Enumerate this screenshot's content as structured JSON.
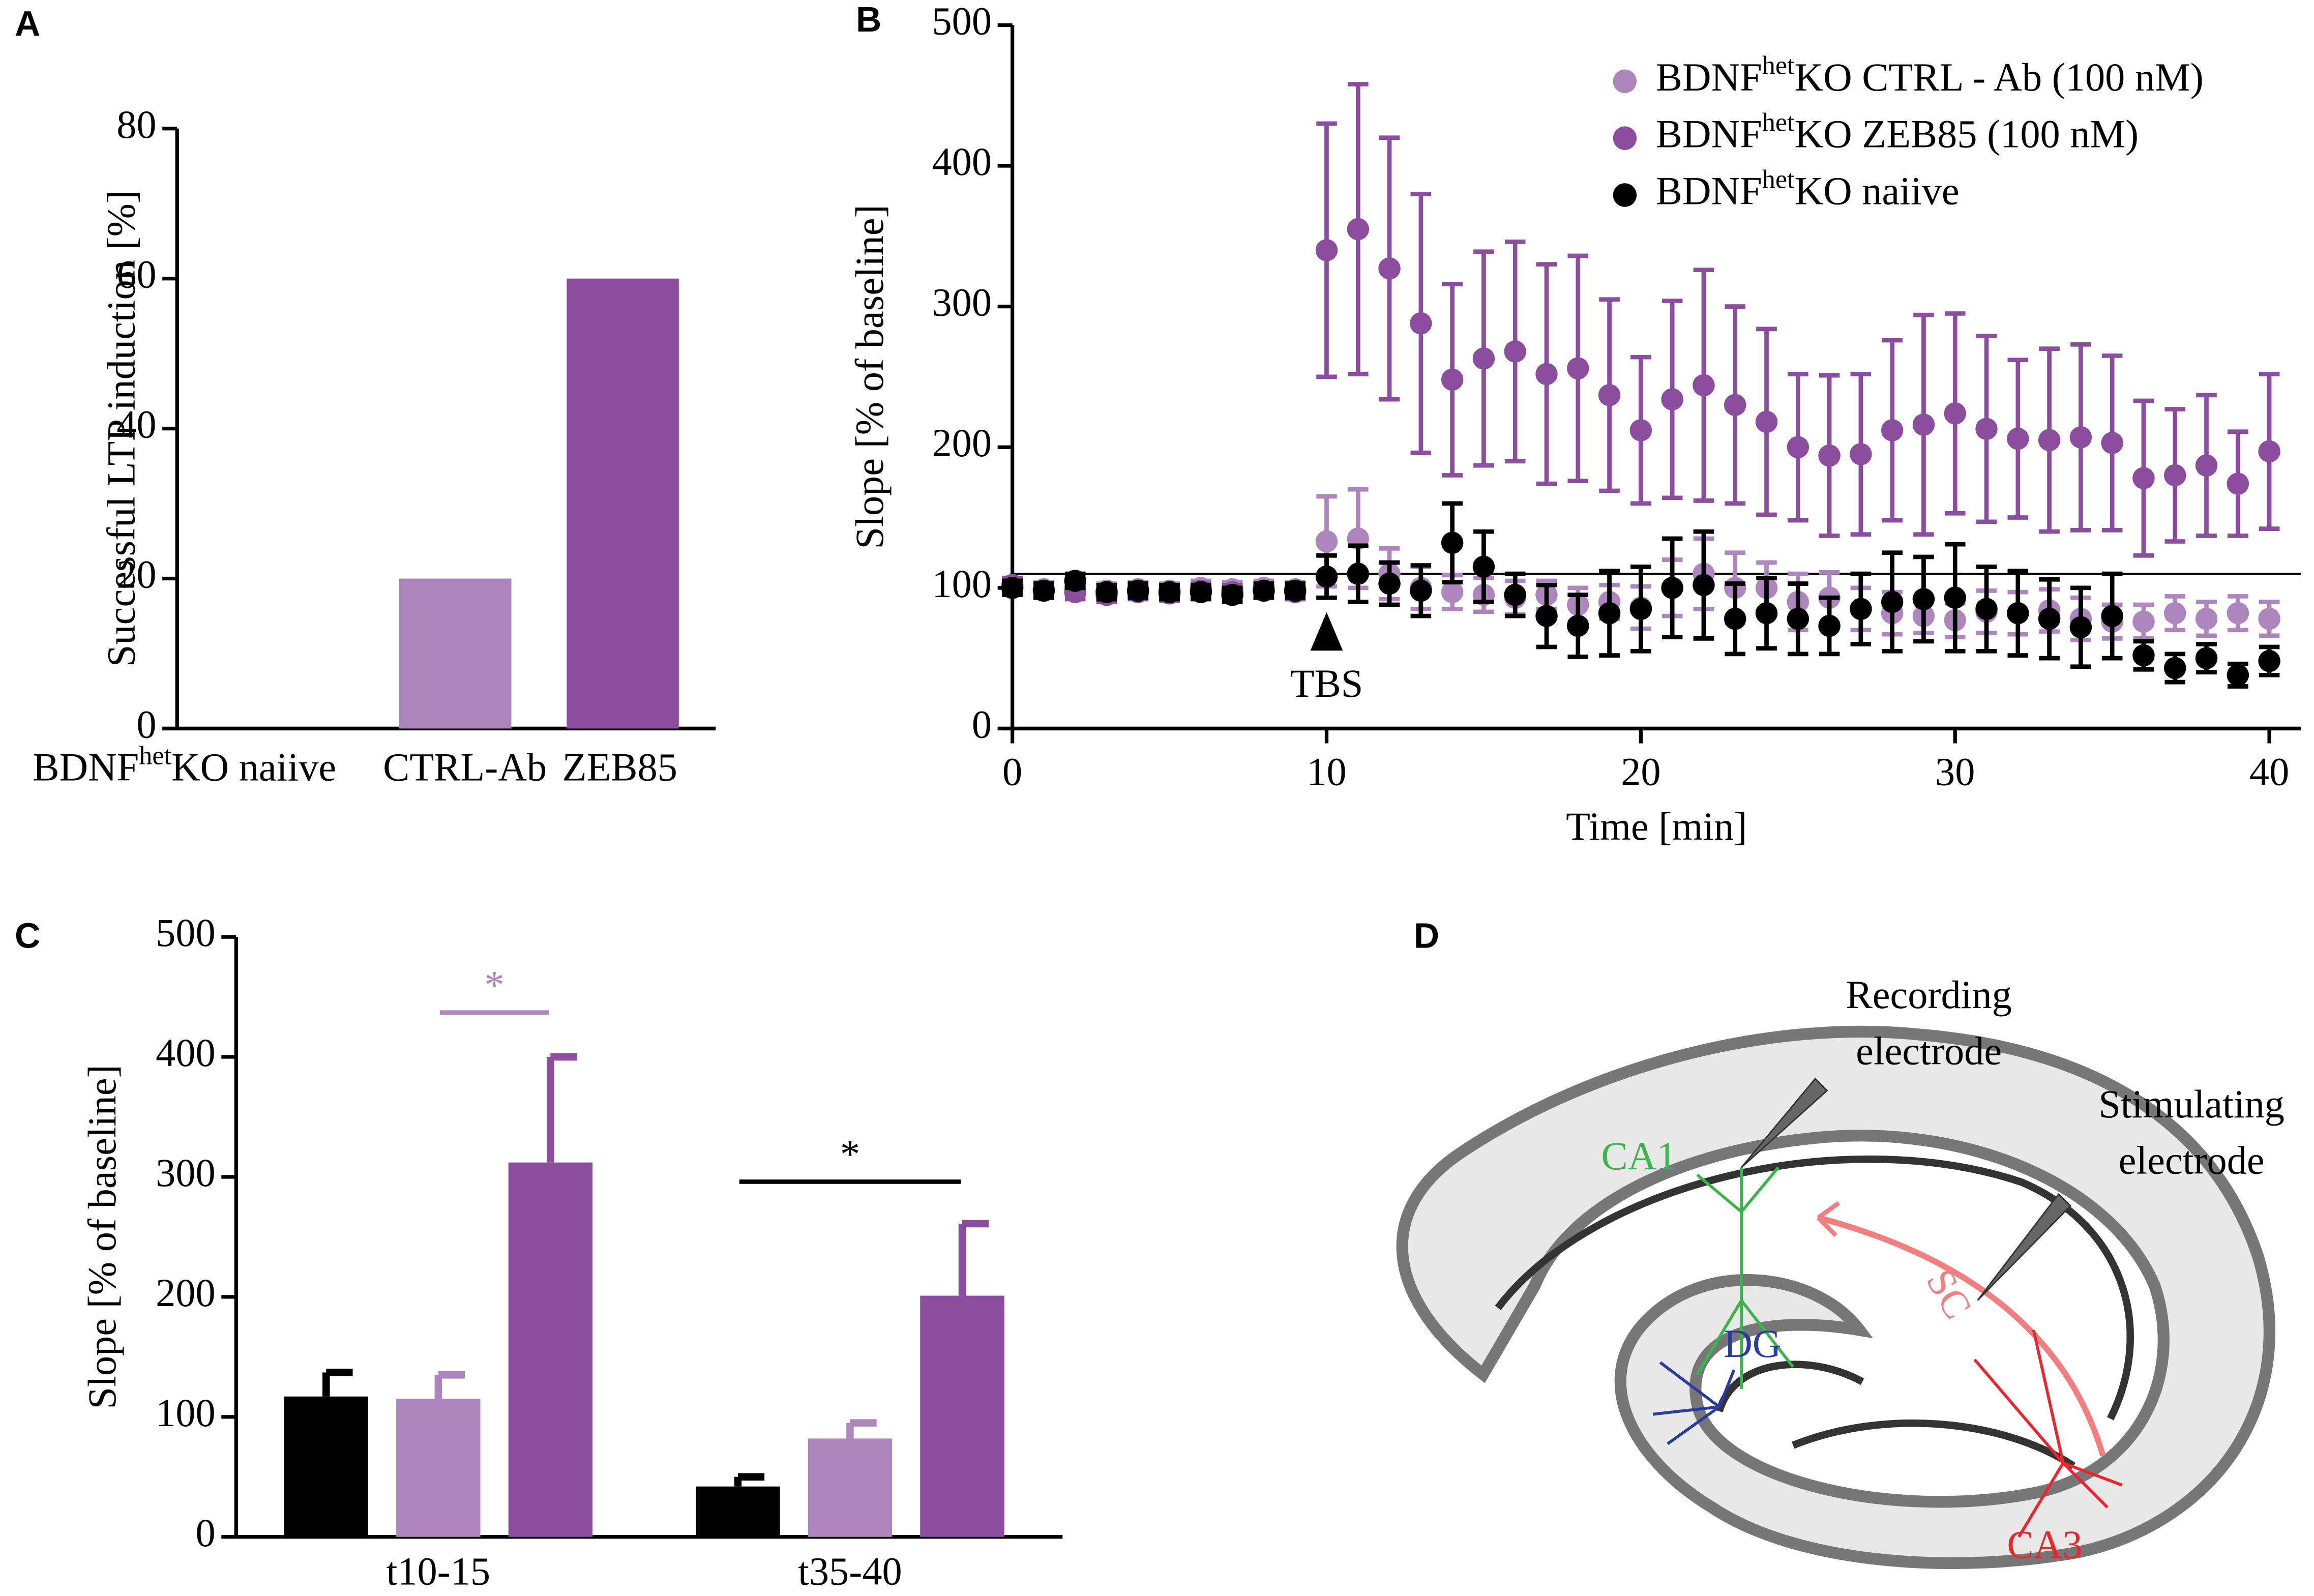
{
  "panels": [
    "A",
    "B",
    "C",
    "D"
  ],
  "chart_data": [
    {
      "type": "bar",
      "ylabel": "Successful LTP induction [%]",
      "categories": [
        [
          "BDNF",
          "het",
          "KO naiive"
        ],
        "CTRL-Ab",
        "ZEB85"
      ],
      "values": [
        0,
        20,
        60
      ],
      "colors": [
        "#000000",
        "#ad86bd",
        "#8b4d9e"
      ],
      "ylim": [
        0,
        80
      ],
      "yticks": [
        0,
        20,
        40,
        60,
        80
      ]
    },
    {
      "type": "scatter",
      "xlabel": "Time [min]",
      "ylabel": "Slope [% of baseline]",
      "x": [
        0,
        1,
        2,
        3,
        4,
        5,
        6,
        7,
        8,
        9,
        10,
        11,
        12,
        13,
        14,
        15,
        16,
        17,
        18,
        19,
        20,
        21,
        22,
        23,
        24,
        25,
        26,
        27,
        28,
        29,
        30,
        31,
        32,
        33,
        34,
        35,
        36,
        37,
        38,
        39,
        40
      ],
      "xlim": [
        0,
        41
      ],
      "xticks": [
        0,
        10,
        20,
        30,
        40
      ],
      "ylim": [
        0,
        500
      ],
      "yticks": [
        0,
        100,
        200,
        300,
        400,
        500
      ],
      "reference_line": 110,
      "annotation": {
        "text": "TBS",
        "x": 10
      },
      "legend": "upper right",
      "series": [
        {
          "name": [
            "BDNF",
            "het",
            "KO CTRL - Ab (100 nM)"
          ],
          "color": "#ad86bd",
          "values": [
            102,
            99,
            100,
            98,
            99,
            98,
            100,
            99,
            100,
            99,
            133,
            135,
            110,
            100,
            97,
            95,
            93,
            95,
            88,
            90,
            86,
            100,
            110,
            100,
            100,
            90,
            93,
            85,
            82,
            80,
            77,
            83,
            82,
            84,
            78,
            76,
            76,
            82,
            78,
            82,
            78
          ],
          "errors": [
            5,
            5,
            5,
            5,
            5,
            5,
            5,
            5,
            5,
            5,
            32,
            35,
            18,
            15,
            12,
            12,
            12,
            10,
            12,
            12,
            15,
            20,
            25,
            25,
            18,
            20,
            18,
            15,
            15,
            12,
            12,
            15,
            15,
            15,
            15,
            12,
            12,
            12,
            12,
            12,
            12
          ]
        },
        {
          "name": [
            "BDNF",
            "het",
            "KO ZEB85 (100 nM)"
          ],
          "color": "#8b4d9e",
          "values": [
            102,
            98,
            97,
            95,
            97,
            96,
            98,
            97,
            98,
            97,
            340,
            355,
            327,
            288,
            248,
            263,
            268,
            252,
            256,
            237,
            212,
            234,
            244,
            230,
            218,
            200,
            194,
            195,
            212,
            216,
            224,
            213,
            206,
            205,
            207,
            203,
            178,
            180,
            187,
            174,
            197
          ],
          "errors": [
            5,
            5,
            5,
            5,
            5,
            5,
            5,
            5,
            5,
            5,
            90,
            103,
            93,
            92,
            68,
            76,
            78,
            78,
            80,
            68,
            52,
            70,
            82,
            70,
            66,
            52,
            57,
            57,
            64,
            78,
            71,
            66,
            56,
            65,
            66,
            62,
            55,
            47,
            50,
            37,
            55
          ]
        },
        {
          "name": [
            "BDNF",
            "het",
            "KO naiive"
          ],
          "color": "#000000",
          "values": [
            100,
            98,
            105,
            97,
            98,
            97,
            97,
            95,
            98,
            98,
            108,
            110,
            103,
            98,
            132,
            115,
            95,
            80,
            73,
            82,
            85,
            100,
            102,
            78,
            82,
            78,
            73,
            85,
            90,
            92,
            93,
            85,
            82,
            78,
            72,
            80,
            52,
            43,
            50,
            38,
            48
          ],
          "errors": [
            5,
            5,
            5,
            5,
            5,
            5,
            5,
            5,
            5,
            5,
            15,
            20,
            15,
            18,
            28,
            25,
            15,
            22,
            22,
            30,
            30,
            35,
            38,
            25,
            25,
            25,
            20,
            25,
            35,
            30,
            38,
            30,
            30,
            28,
            28,
            30,
            10,
            10,
            10,
            8,
            10
          ]
        }
      ]
    },
    {
      "type": "grouped_bar",
      "ylabel": "Slope [% of baseline]",
      "categories": [
        "t10-15",
        "t35-40"
      ],
      "ylim": [
        0,
        500
      ],
      "yticks": [
        0,
        100,
        200,
        300,
        400,
        500
      ],
      "series": [
        {
          "color": "#000000",
          "values": [
            117,
            42
          ],
          "errors": [
            20,
            8
          ]
        },
        {
          "color": "#ad86bd",
          "values": [
            115,
            82
          ],
          "errors": [
            20,
            13
          ]
        },
        {
          "color": "#8b4d9e",
          "values": [
            312,
            201
          ],
          "errors": [
            88,
            60
          ]
        }
      ],
      "significance": [
        {
          "text": "*",
          "color": "#ad86bd",
          "category": 0,
          "from": 1,
          "to": 2,
          "level": 437
        },
        {
          "text": "*",
          "color": "#000000",
          "category": 1,
          "from": 0,
          "to": 2,
          "level": 296
        }
      ]
    }
  ],
  "diagram": {
    "recording": [
      "Recording",
      "electrode"
    ],
    "stimulating": [
      "Stimulating",
      "electrode"
    ],
    "ca1": "CA1",
    "dg": "DG",
    "sc": "SC",
    "ca3": "CA3"
  }
}
